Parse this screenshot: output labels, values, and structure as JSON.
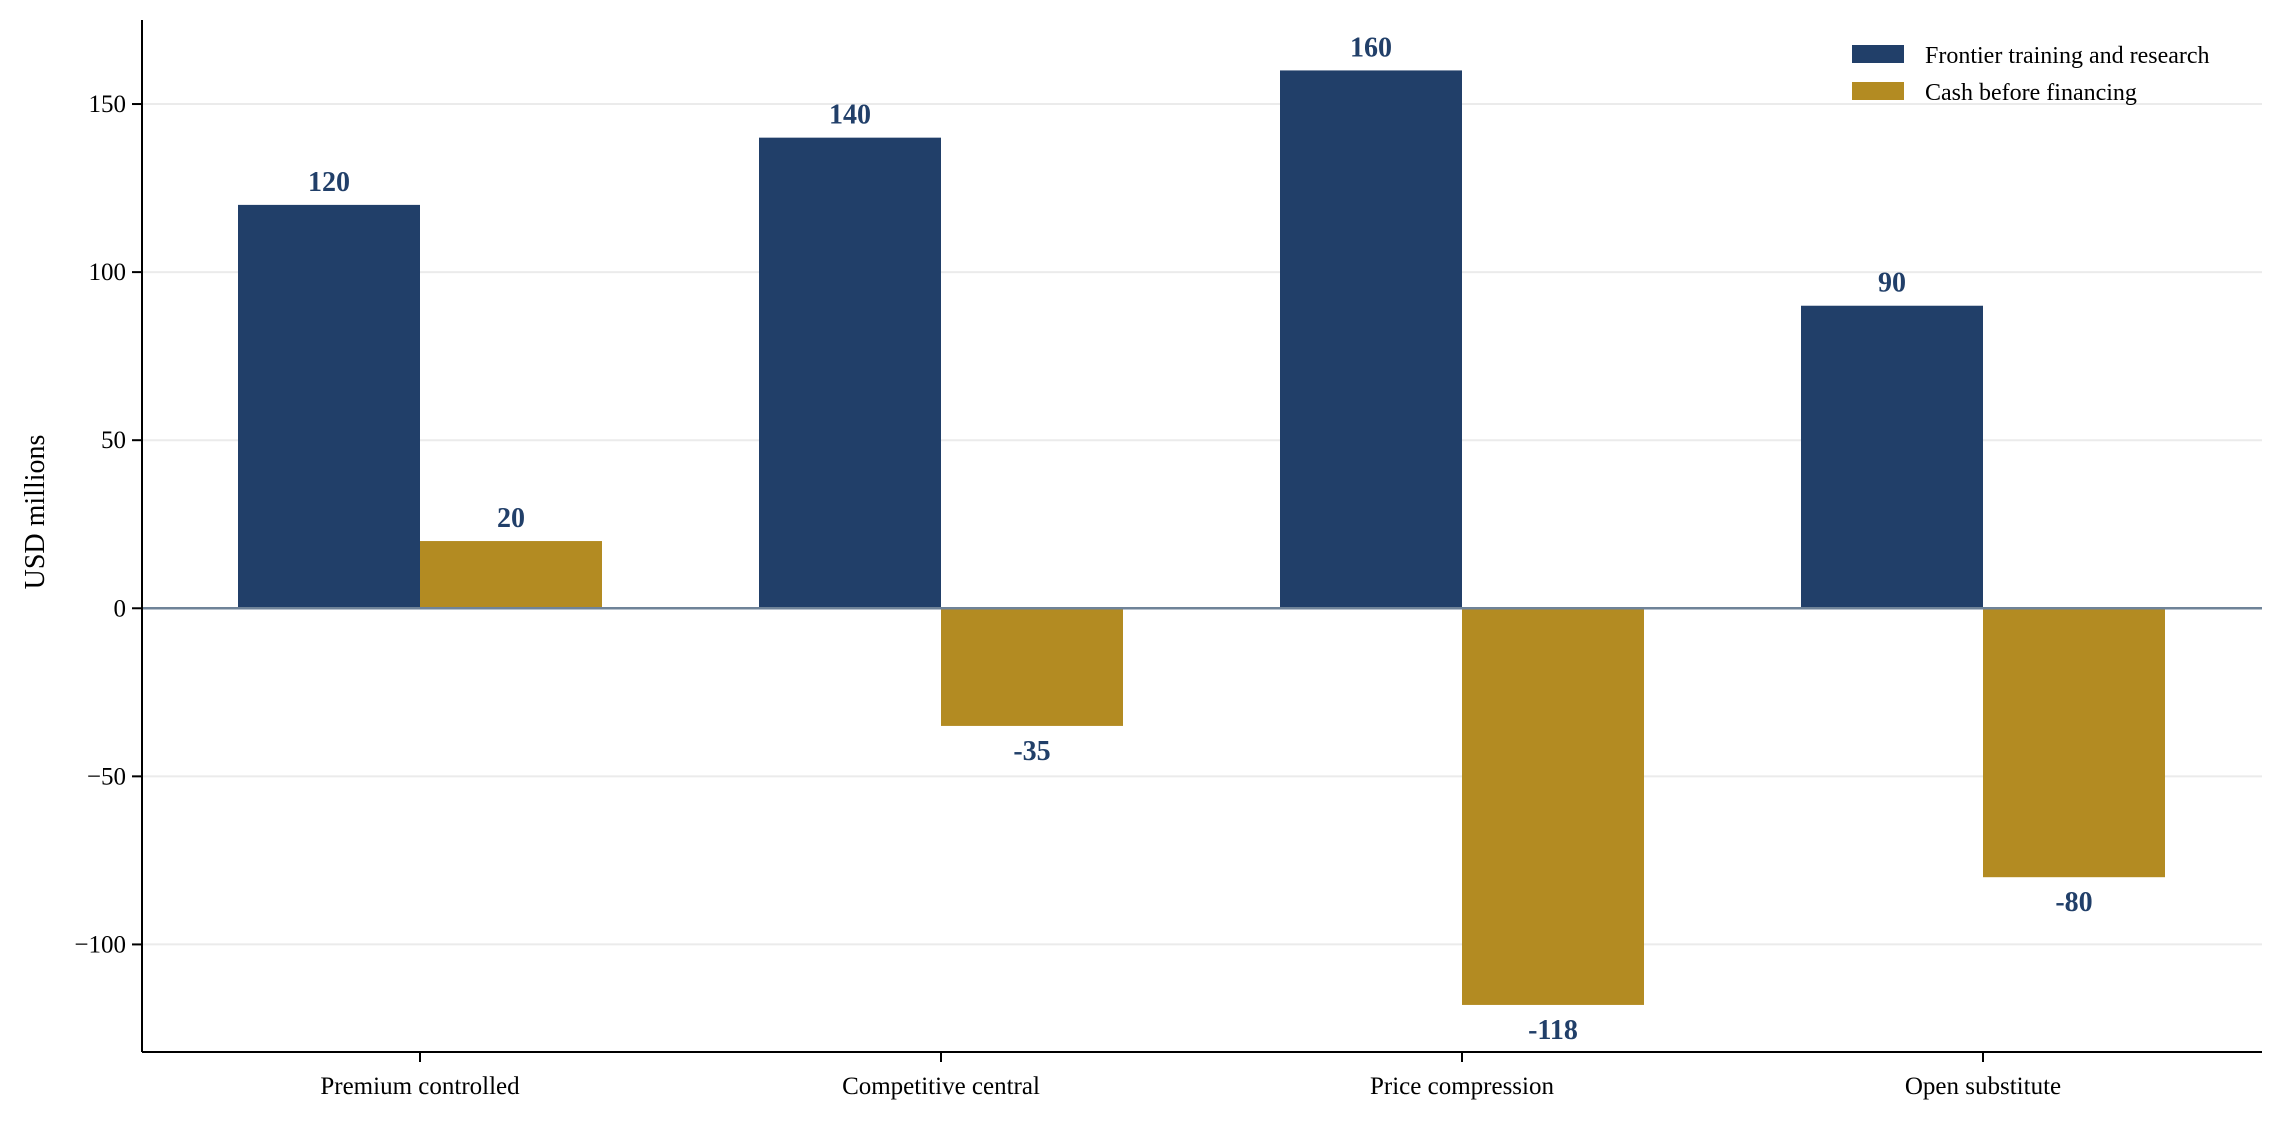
{
  "chart_data": {
    "type": "bar",
    "title": "",
    "xlabel": "",
    "ylabel": "USD millions",
    "ylim": [
      -132,
      175
    ],
    "yticks": [
      -100,
      -50,
      0,
      50,
      100,
      150
    ],
    "ytick_labels": [
      "−100",
      "−50",
      "0",
      "50",
      "100",
      "150"
    ],
    "grid": "horizontal",
    "legend_position": "top-right",
    "categories": [
      "Premium controlled",
      "Competitive central",
      "Price compression",
      "Open substitute"
    ],
    "series": [
      {
        "name": "Frontier training and research",
        "color": "#213f69",
        "values": [
          120,
          140,
          160,
          90
        ],
        "labels": [
          "120",
          "140",
          "160",
          "90"
        ]
      },
      {
        "name": "Cash before financing",
        "color": "#b38b22",
        "values": [
          20,
          -35,
          -118,
          -80
        ],
        "labels": [
          "20",
          "-35",
          "-118",
          "-80"
        ]
      }
    ],
    "data_label_color": "#213f69"
  }
}
